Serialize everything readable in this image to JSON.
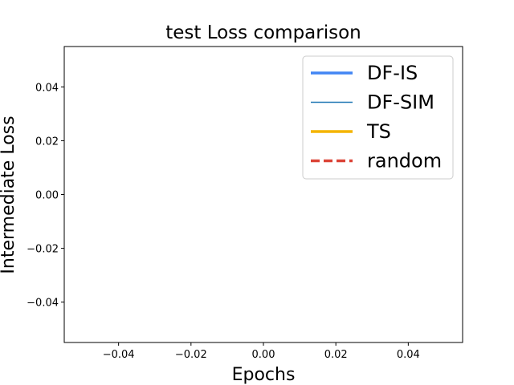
{
  "chart_data": {
    "type": "line",
    "title": "test Loss comparison",
    "xlabel": "Epochs",
    "ylabel": "Intermediate Loss",
    "xlim": [
      -0.055,
      0.055
    ],
    "ylim": [
      -0.055,
      0.055
    ],
    "xticks": [
      -0.04,
      -0.02,
      0.0,
      0.02,
      0.04
    ],
    "xtick_labels": [
      "−0.04",
      "−0.02",
      "0.00",
      "0.02",
      "0.04"
    ],
    "yticks": [
      -0.04,
      -0.02,
      0.0,
      0.02,
      0.04
    ],
    "ytick_labels": [
      "−0.04",
      "−0.02",
      "0.00",
      "0.02",
      "0.04"
    ],
    "grid": false,
    "legend_position": "top-right",
    "series": [
      {
        "name": "DF-IS",
        "color": "#4285f4",
        "line_style": "solid",
        "line_weight": "thick",
        "x": [],
        "y": []
      },
      {
        "name": "DF-SIM",
        "color": "#1f77b4",
        "line_style": "solid",
        "line_weight": "thin",
        "x": [],
        "y": []
      },
      {
        "name": "TS",
        "color": "#f4b400",
        "line_style": "solid",
        "line_weight": "thick",
        "x": [],
        "y": []
      },
      {
        "name": "random",
        "color": "#db4437",
        "line_style": "dashed",
        "line_weight": "thick",
        "x": [],
        "y": []
      }
    ]
  }
}
